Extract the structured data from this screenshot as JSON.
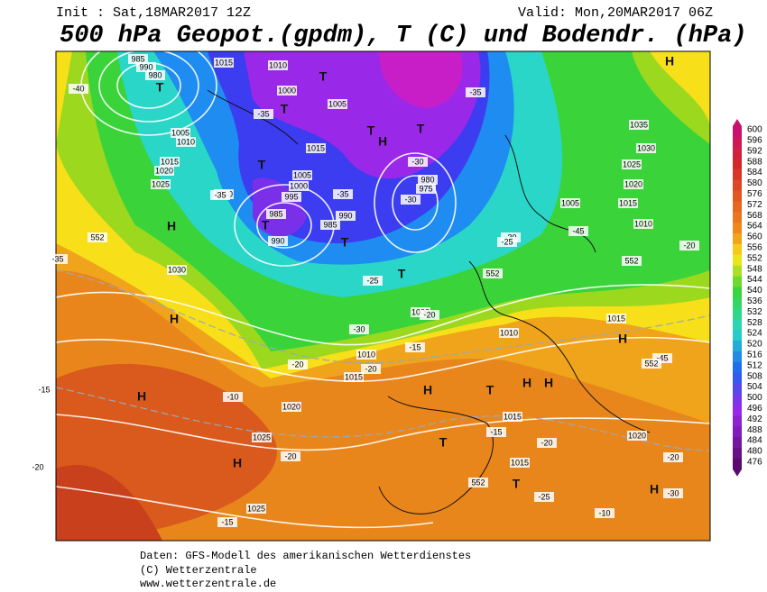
{
  "header": {
    "init": "Init : Sat,18MAR2017 12Z",
    "valid": "Valid: Mon,20MAR2017 06Z",
    "title": "500 hPa Geopot.(gpdm), T (C) und Bodendr. (hPa)"
  },
  "colorbar": {
    "labels": [
      600,
      596,
      592,
      588,
      584,
      580,
      576,
      572,
      568,
      564,
      560,
      556,
      552,
      548,
      544,
      540,
      536,
      532,
      528,
      524,
      520,
      516,
      512,
      508,
      504,
      500,
      496,
      492,
      488,
      484,
      480,
      476
    ]
  },
  "map_labels": [
    "1015",
    "1010",
    "985",
    "990",
    "980",
    "1005",
    "1010",
    "1000",
    "1005",
    "1015",
    "1020",
    "1025",
    "1010",
    "1015",
    "1005",
    "1000",
    "995",
    "985",
    "990",
    "985",
    "980",
    "975",
    "990",
    "1030",
    "1035",
    "1030",
    "1025",
    "1020",
    "1015",
    "1005",
    "1010",
    "1015",
    "1000",
    "1010",
    "1015",
    "1020",
    "1025",
    "1025",
    "1015",
    "1015",
    "1020",
    "1010",
    "H",
    "H",
    "H",
    "H",
    "H",
    "H",
    "H",
    "H",
    "H",
    "H",
    "H",
    "T",
    "T",
    "T",
    "T",
    "T",
    "T",
    "T",
    "T",
    "T",
    "T",
    "T",
    "T",
    "-20",
    "-35",
    "-45",
    "-45",
    "-40",
    "-35",
    "-35",
    "-35",
    "-30",
    "-30",
    "-35",
    "-25",
    "-30",
    "-30",
    "-25",
    "-20",
    "-20",
    "-15",
    "-20",
    "-15",
    "-10",
    "-20",
    "-20",
    "-15",
    "-10",
    "-15",
    "-20",
    "-25",
    "-20",
    "-30",
    "552",
    "552",
    "552",
    "552",
    "552"
  ],
  "footer": {
    "line1": "Daten: GFS-Modell des amerikanischen Wetterdienstes",
    "line2": "(C) Wetterzentrale",
    "line3": "www.wetterzentrale.de"
  }
}
